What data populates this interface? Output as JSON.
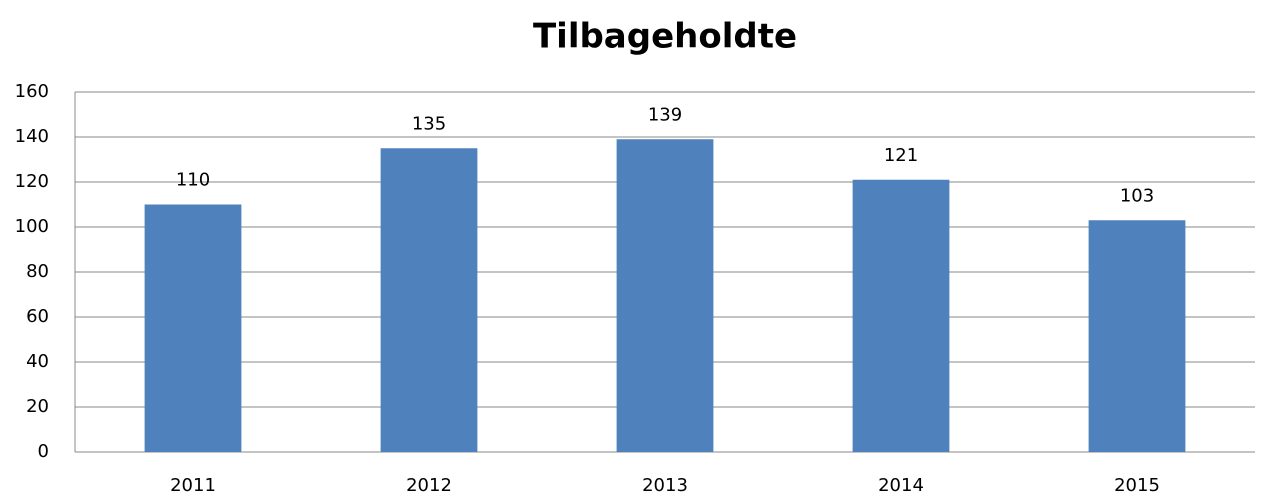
{
  "chart_data": {
    "type": "bar",
    "title": "Tilbageholdte",
    "categories": [
      "2011",
      "2012",
      "2013",
      "2014",
      "2015"
    ],
    "values": [
      110,
      135,
      139,
      121,
      103
    ],
    "color": "#4f81bd",
    "ylim": [
      0,
      160
    ],
    "yticks": [
      0,
      20,
      40,
      60,
      80,
      100,
      120,
      140,
      160
    ],
    "grid": true
  }
}
